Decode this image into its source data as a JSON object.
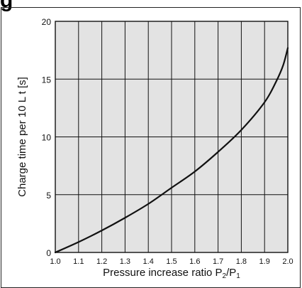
{
  "page": {
    "title": "g"
  },
  "colors": {
    "plot_background": "#e3e3e3",
    "grid": "#111111",
    "curve": "#111111"
  },
  "chart_data": {
    "type": "line",
    "title": "",
    "xlabel": "Pressure increase ratio P2/P1",
    "xlabel_parts": {
      "main": "Pressure increase ratio P",
      "sub1": "2",
      "slash": "/P",
      "sub2": "1"
    },
    "ylabel": "Charge time per 10 L t [s]",
    "xlim": [
      1.0,
      2.0
    ],
    "ylim": [
      0,
      20
    ],
    "xticks": [
      1.0,
      1.1,
      1.2,
      1.3,
      1.4,
      1.5,
      1.6,
      1.7,
      1.8,
      1.9,
      2.0
    ],
    "xtick_labels": [
      "1.0",
      "1.1",
      "1.2",
      "1.3",
      "1.4",
      "1.5",
      "1.6",
      "1.7",
      "1.8",
      "1.9",
      "2.0"
    ],
    "yticks": [
      0,
      5,
      10,
      15,
      20
    ],
    "ytick_labels": [
      "0",
      "5",
      "10",
      "15",
      "20"
    ],
    "grid": true,
    "series": [
      {
        "x": [
          1.0,
          1.1,
          1.2,
          1.3,
          1.4,
          1.5,
          1.6,
          1.7,
          1.8,
          1.9,
          1.95,
          1.98,
          2.0
        ],
        "y": [
          0.0,
          0.9,
          1.9,
          3.0,
          4.2,
          5.6,
          7.0,
          8.7,
          10.6,
          13.0,
          14.8,
          16.2,
          17.7
        ]
      }
    ]
  }
}
